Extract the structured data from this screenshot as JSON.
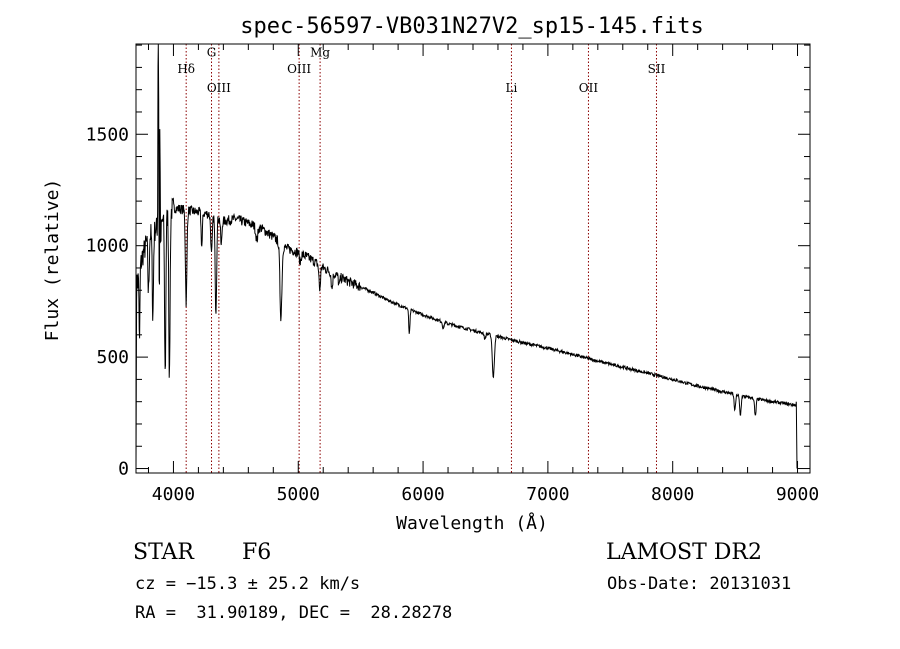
{
  "chart_data": {
    "type": "line",
    "title": "spec-56597-VB031N27V2_sp15-145.fits",
    "xlabel": "Wavelength (Å)",
    "ylabel": "Flux (relative)",
    "xlim": [
      3700,
      9100
    ],
    "ylim": [
      -20,
      1905
    ],
    "xticks": [
      4000,
      5000,
      6000,
      7000,
      8000,
      9000
    ],
    "yticks": [
      0,
      500,
      1000,
      1500
    ],
    "grid": false,
    "line_color": "#000000",
    "marker_color": "#8b0000",
    "lines": [
      {
        "label": "Hδ",
        "wavelength": 4102,
        "label_flux": 1775
      },
      {
        "label": "G",
        "wavelength": 4305,
        "label_flux": 1850
      },
      {
        "label": "OIII",
        "wavelength": 4364,
        "label_flux": 1690
      },
      {
        "label": "OIII",
        "wavelength": 5007,
        "label_flux": 1775
      },
      {
        "label": "Mg",
        "wavelength": 5175,
        "label_flux": 1850
      },
      {
        "label": "Li",
        "wavelength": 6708,
        "label_flux": 1690
      },
      {
        "label": "OII",
        "wavelength": 7325,
        "label_flux": 1690
      },
      {
        "label": "SII",
        "wavelength": 7870,
        "label_flux": 1775
      }
    ],
    "continuum": [
      [
        3700,
        800
      ],
      [
        3750,
        950
      ],
      [
        3800,
        1040
      ],
      [
        3900,
        1100
      ],
      [
        4000,
        1170
      ],
      [
        4100,
        1160
      ],
      [
        4200,
        1150
      ],
      [
        4300,
        1140
      ],
      [
        4400,
        1110
      ],
      [
        4500,
        1120
      ],
      [
        4600,
        1100
      ],
      [
        4700,
        1080
      ],
      [
        4800,
        1040
      ],
      [
        4900,
        990
      ],
      [
        5000,
        970
      ],
      [
        5100,
        940
      ],
      [
        5200,
        900
      ],
      [
        5300,
        870
      ],
      [
        5400,
        840
      ],
      [
        5500,
        815
      ],
      [
        5600,
        790
      ],
      [
        5700,
        760
      ],
      [
        5800,
        735
      ],
      [
        5900,
        712
      ],
      [
        6000,
        690
      ],
      [
        6200,
        650
      ],
      [
        6400,
        620
      ],
      [
        6600,
        592
      ],
      [
        6800,
        565
      ],
      [
        7000,
        540
      ],
      [
        7200,
        512
      ],
      [
        7400,
        482
      ],
      [
        7600,
        455
      ],
      [
        7800,
        428
      ],
      [
        8000,
        400
      ],
      [
        8200,
        370
      ],
      [
        8400,
        345
      ],
      [
        8600,
        320
      ],
      [
        8800,
        300
      ],
      [
        8980,
        285
      ]
    ],
    "absorption": [
      [
        3728,
        350,
        3
      ],
      [
        3800,
        250,
        5
      ],
      [
        3835,
        380,
        5
      ],
      [
        3889,
        400,
        6
      ],
      [
        3934,
        700,
        5
      ],
      [
        3968,
        750,
        5
      ],
      [
        4102,
        420,
        6
      ],
      [
        4227,
        150,
        5
      ],
      [
        4305,
        180,
        6
      ],
      [
        4340,
        420,
        6
      ],
      [
        4383,
        120,
        5
      ],
      [
        4668,
        60,
        8
      ],
      [
        4861,
        330,
        8
      ],
      [
        5015,
        40,
        6
      ],
      [
        5172,
        110,
        6
      ],
      [
        5270,
        70,
        6
      ],
      [
        5328,
        40,
        6
      ],
      [
        5890,
        110,
        5
      ],
      [
        6162,
        30,
        6
      ],
      [
        6495,
        25,
        6
      ],
      [
        6563,
        190,
        8
      ],
      [
        8498,
        70,
        6
      ],
      [
        8542,
        90,
        6
      ],
      [
        8662,
        80,
        6
      ]
    ],
    "emission": [
      [
        3879,
        1600,
        2.5
      ],
      [
        3892,
        900,
        2
      ]
    ],
    "end_flux": [
      [
        3700,
        0
      ],
      [
        8990,
        300
      ],
      [
        8996,
        0
      ]
    ]
  },
  "info": {
    "object_class": "STAR",
    "subclass": "F6",
    "survey": "LAMOST DR2",
    "velocity": "cz = −15.3 ± 25.2 km/s",
    "obs_date": "Obs-Date: 20131031",
    "coords": "RA =  31.90189, DEC =  28.28278"
  }
}
